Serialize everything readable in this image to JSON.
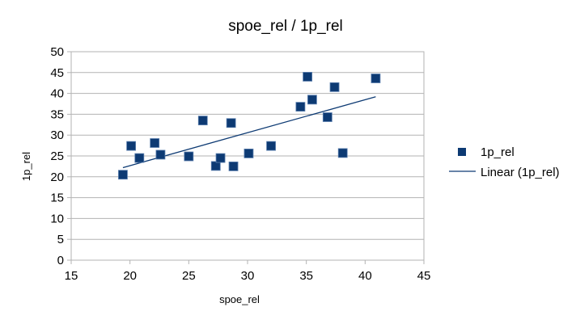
{
  "chart_data": {
    "type": "scatter",
    "title": "spoe_rel / 1p_rel",
    "xlabel": "spoe_rel",
    "ylabel": "1p_rel",
    "xlim": [
      15,
      45
    ],
    "ylim": [
      0,
      50
    ],
    "xticks": [
      15,
      20,
      25,
      30,
      35,
      40,
      45
    ],
    "yticks": [
      0,
      5,
      10,
      15,
      20,
      25,
      30,
      35,
      40,
      45,
      50
    ],
    "grid": true,
    "legend_position": "right",
    "series": [
      {
        "name": "1p_rel",
        "color": "#0d3a73",
        "marker": "square",
        "points": [
          {
            "x": 19.4,
            "y": 20.5
          },
          {
            "x": 20.1,
            "y": 27.4
          },
          {
            "x": 20.8,
            "y": 24.5
          },
          {
            "x": 22.1,
            "y": 28.1
          },
          {
            "x": 22.6,
            "y": 25.3
          },
          {
            "x": 25.0,
            "y": 24.9
          },
          {
            "x": 26.2,
            "y": 33.5
          },
          {
            "x": 27.3,
            "y": 22.6
          },
          {
            "x": 27.7,
            "y": 24.5
          },
          {
            "x": 28.6,
            "y": 32.9
          },
          {
            "x": 28.8,
            "y": 22.5
          },
          {
            "x": 30.1,
            "y": 25.6
          },
          {
            "x": 32.0,
            "y": 27.4
          },
          {
            "x": 34.5,
            "y": 36.8
          },
          {
            "x": 35.1,
            "y": 44.0
          },
          {
            "x": 35.5,
            "y": 38.5
          },
          {
            "x": 36.8,
            "y": 34.3
          },
          {
            "x": 37.4,
            "y": 41.5
          },
          {
            "x": 38.1,
            "y": 25.7
          },
          {
            "x": 40.9,
            "y": 43.6
          }
        ]
      }
    ],
    "trendline": {
      "name": "Linear (1p_rel)",
      "color": "#0d3a73",
      "x_start": 19.4,
      "y_start": 22.2,
      "x_end": 40.9,
      "y_end": 39.2
    }
  }
}
